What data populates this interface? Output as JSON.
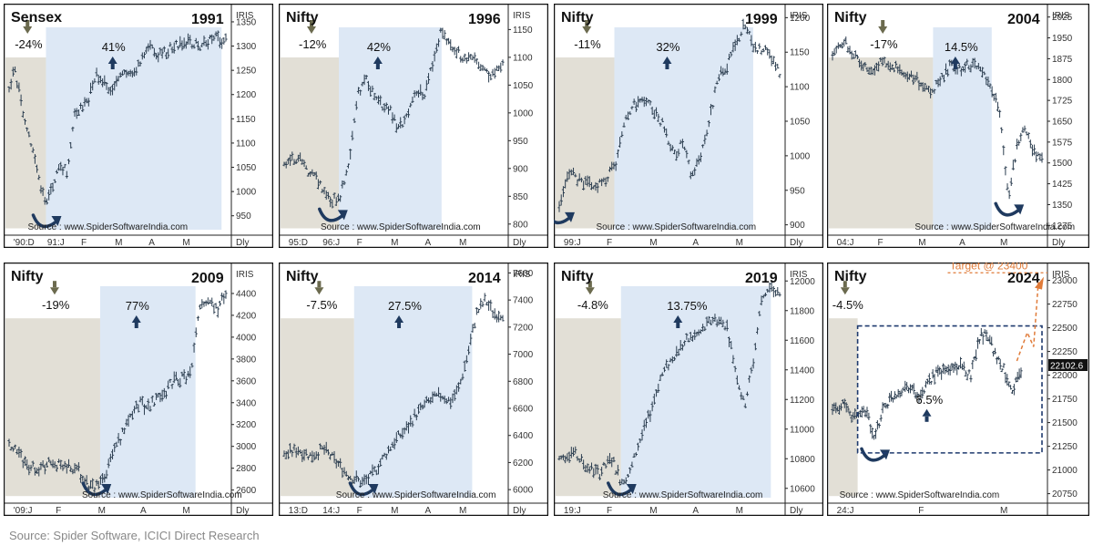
{
  "footer": "Source: Spider Software, ICICI Direct Research",
  "colors": {
    "pre_zone": "#e2dfd6",
    "rally_zone": "#dde8f5",
    "bars": "#2c3e50",
    "arrow_down": "#6b6a4e",
    "arrow_up": "#1f3a5f",
    "target": "#e07b39",
    "dashed_box": "#1f3a6e"
  },
  "chart_data": [
    {
      "type": "ohlc",
      "index": "Sensex",
      "year": "1991",
      "iris": "IRIS",
      "period": "Dly",
      "source_note": "Source : www.SpiderSoftwareIndia.com",
      "x_labels": [
        "'90:D",
        "91:J",
        "F",
        "M",
        "A",
        "M"
      ],
      "y_ticks": [
        950,
        1000,
        1050,
        1100,
        1150,
        1200,
        1250,
        1300,
        1350
      ],
      "ylim": [
        910,
        1380
      ],
      "decline_pct": "-24%",
      "rally_pct": "41%",
      "path": [
        [
          0,
          1210
        ],
        [
          0.025,
          1260
        ],
        [
          0.06,
          1170
        ],
        [
          0.1,
          1100
        ],
        [
          0.14,
          1020
        ],
        [
          0.17,
          965
        ],
        [
          0.2,
          1010
        ],
        [
          0.23,
          1060
        ],
        [
          0.27,
          1040
        ],
        [
          0.3,
          1160
        ],
        [
          0.36,
          1180
        ],
        [
          0.4,
          1240
        ],
        [
          0.46,
          1210
        ],
        [
          0.52,
          1240
        ],
        [
          0.58,
          1250
        ],
        [
          0.64,
          1300
        ],
        [
          0.7,
          1280
        ],
        [
          0.76,
          1300
        ],
        [
          0.82,
          1310
        ],
        [
          0.88,
          1300
        ],
        [
          0.94,
          1320
        ],
        [
          1,
          1310
        ]
      ]
    },
    {
      "type": "ohlc",
      "index": "Nifty",
      "year": "1996",
      "iris": "IRIS",
      "period": "Dly",
      "source_note": "Source : www.SpiderSoftwareIndia.com",
      "x_labels": [
        "95:D",
        "96:J",
        "F",
        "M",
        "A",
        "M"
      ],
      "y_ticks": [
        800,
        850,
        900,
        950,
        1000,
        1050,
        1100,
        1150
      ],
      "ylim": [
        780,
        1190
      ],
      "decline_pct": "-12%",
      "rally_pct": "42%",
      "path": [
        [
          0,
          910
        ],
        [
          0.06,
          920
        ],
        [
          0.1,
          900
        ],
        [
          0.16,
          875
        ],
        [
          0.22,
          840
        ],
        [
          0.26,
          855
        ],
        [
          0.3,
          920
        ],
        [
          0.34,
          1040
        ],
        [
          0.38,
          1060
        ],
        [
          0.42,
          1020
        ],
        [
          0.48,
          1010
        ],
        [
          0.52,
          970
        ],
        [
          0.56,
          990
        ],
        [
          0.6,
          1040
        ],
        [
          0.64,
          1030
        ],
        [
          0.68,
          1090
        ],
        [
          0.72,
          1150
        ],
        [
          0.76,
          1120
        ],
        [
          0.82,
          1100
        ],
        [
          0.88,
          1090
        ],
        [
          0.94,
          1070
        ],
        [
          1,
          1090
        ]
      ]
    },
    {
      "type": "ohlc",
      "index": "Nifty",
      "year": "1999",
      "iris": "IRIS",
      "period": "Dly",
      "source_note": "Source : www.SpiderSoftwareIndia.com",
      "x_labels": [
        "99:J",
        "F",
        "M",
        "A",
        "M"
      ],
      "y_ticks": [
        900,
        950,
        1000,
        1050,
        1100,
        1150,
        1200
      ],
      "ylim": [
        885,
        1215
      ],
      "decline_pct": "-11%",
      "rally_pct": "32%",
      "path": [
        [
          0,
          930
        ],
        [
          0.05,
          980
        ],
        [
          0.1,
          960
        ],
        [
          0.16,
          955
        ],
        [
          0.2,
          960
        ],
        [
          0.26,
          990
        ],
        [
          0.3,
          1060
        ],
        [
          0.36,
          1080
        ],
        [
          0.42,
          1070
        ],
        [
          0.48,
          1040
        ],
        [
          0.52,
          1000
        ],
        [
          0.56,
          1020
        ],
        [
          0.6,
          970
        ],
        [
          0.64,
          1000
        ],
        [
          0.68,
          1050
        ],
        [
          0.72,
          1110
        ],
        [
          0.76,
          1130
        ],
        [
          0.8,
          1160
        ],
        [
          0.84,
          1190
        ],
        [
          0.88,
          1160
        ],
        [
          0.94,
          1150
        ],
        [
          1,
          1120
        ]
      ]
    },
    {
      "type": "ohlc",
      "index": "Nifty",
      "year": "2004",
      "iris": "IRIS",
      "period": "Dly",
      "source_note": "Source : www.SpiderSoftwareIndia.com",
      "x_labels": [
        "04:J",
        "F",
        "M",
        "A",
        "M"
      ],
      "y_ticks": [
        1275,
        1350,
        1425,
        1500,
        1575,
        1650,
        1725,
        1800,
        1875,
        1950,
        2025
      ],
      "ylim": [
        1240,
        2060
      ],
      "decline_pct": "-17%",
      "rally_pct": "14.5%",
      "path": [
        [
          0,
          1900
        ],
        [
          0.06,
          1930
        ],
        [
          0.12,
          1880
        ],
        [
          0.18,
          1830
        ],
        [
          0.22,
          1860
        ],
        [
          0.28,
          1850
        ],
        [
          0.34,
          1830
        ],
        [
          0.4,
          1800
        ],
        [
          0.46,
          1750
        ],
        [
          0.52,
          1800
        ],
        [
          0.56,
          1850
        ],
        [
          0.62,
          1840
        ],
        [
          0.68,
          1860
        ],
        [
          0.72,
          1820
        ],
        [
          0.76,
          1760
        ],
        [
          0.8,
          1680
        ],
        [
          0.84,
          1380
        ],
        [
          0.88,
          1560
        ],
        [
          0.92,
          1620
        ],
        [
          0.96,
          1540
        ],
        [
          1,
          1510
        ]
      ]
    },
    {
      "type": "ohlc",
      "index": "Nifty",
      "year": "2009",
      "iris": "IRIS",
      "period": "Dly",
      "source_note": "Source : www.SpiderSoftwareIndia.com",
      "x_labels": [
        "'09:J",
        "F",
        "M",
        "A",
        "M"
      ],
      "y_ticks": [
        2600,
        2800,
        3000,
        3200,
        3400,
        3600,
        3800,
        4000,
        4200,
        4400,
        4600
      ],
      "ylim": [
        2480,
        4650
      ],
      "decline_pct": "-19%",
      "rally_pct": "77%",
      "path": [
        [
          0,
          3000
        ],
        [
          0.04,
          2950
        ],
        [
          0.08,
          2820
        ],
        [
          0.14,
          2800
        ],
        [
          0.2,
          2850
        ],
        [
          0.26,
          2820
        ],
        [
          0.32,
          2780
        ],
        [
          0.36,
          2650
        ],
        [
          0.4,
          2620
        ],
        [
          0.44,
          2700
        ],
        [
          0.48,
          2950
        ],
        [
          0.52,
          3100
        ],
        [
          0.56,
          3300
        ],
        [
          0.6,
          3400
        ],
        [
          0.64,
          3350
        ],
        [
          0.68,
          3450
        ],
        [
          0.72,
          3500
        ],
        [
          0.76,
          3600
        ],
        [
          0.8,
          3620
        ],
        [
          0.84,
          3650
        ],
        [
          0.88,
          4300
        ],
        [
          0.92,
          4350
        ],
        [
          0.96,
          4250
        ],
        [
          1,
          4400
        ]
      ]
    },
    {
      "type": "ohlc",
      "index": "Nifty",
      "year": "2014",
      "iris": "IRIS",
      "period": "Dly",
      "source_note": "Source : www.SpiderSoftwareIndia.com",
      "x_labels": [
        "13:D",
        "14:J",
        "F",
        "M",
        "A",
        "M"
      ],
      "y_ticks": [
        6000,
        6200,
        6400,
        6600,
        6800,
        7000,
        7200,
        7400,
        7600
      ],
      "ylim": [
        5900,
        7650
      ],
      "decline_pct": "-7.5%",
      "rally_pct": "27.5%",
      "path": [
        [
          0,
          6250
        ],
        [
          0.06,
          6300
        ],
        [
          0.12,
          6250
        ],
        [
          0.18,
          6300
        ],
        [
          0.24,
          6200
        ],
        [
          0.3,
          6100
        ],
        [
          0.36,
          6050
        ],
        [
          0.4,
          6100
        ],
        [
          0.44,
          6200
        ],
        [
          0.5,
          6350
        ],
        [
          0.56,
          6450
        ],
        [
          0.6,
          6550
        ],
        [
          0.66,
          6650
        ],
        [
          0.72,
          6700
        ],
        [
          0.76,
          6650
        ],
        [
          0.8,
          6750
        ],
        [
          0.84,
          7000
        ],
        [
          0.88,
          7300
        ],
        [
          0.92,
          7400
        ],
        [
          0.96,
          7300
        ],
        [
          1,
          7300
        ]
      ]
    },
    {
      "type": "ohlc",
      "index": "Nifty",
      "year": "2019",
      "iris": "IRIS",
      "period": "Dly",
      "source_note": "Source : www.SpiderSoftwareIndia.com",
      "x_labels": [
        "19:J",
        "F",
        "M",
        "A",
        "M"
      ],
      "y_ticks": [
        10600,
        10800,
        11000,
        11200,
        11400,
        11600,
        11800,
        12000
      ],
      "ylim": [
        10500,
        12100
      ],
      "decline_pct": "-4.8%",
      "rally_pct": "13.75%",
      "path": [
        [
          0,
          10800
        ],
        [
          0.06,
          10850
        ],
        [
          0.12,
          10750
        ],
        [
          0.18,
          10700
        ],
        [
          0.24,
          10800
        ],
        [
          0.28,
          10650
        ],
        [
          0.32,
          10700
        ],
        [
          0.36,
          10900
        ],
        [
          0.4,
          11050
        ],
        [
          0.46,
          11350
        ],
        [
          0.52,
          11500
        ],
        [
          0.58,
          11600
        ],
        [
          0.64,
          11650
        ],
        [
          0.7,
          11750
        ],
        [
          0.76,
          11700
        ],
        [
          0.8,
          11400
        ],
        [
          0.84,
          11150
        ],
        [
          0.88,
          11450
        ],
        [
          0.92,
          11900
        ],
        [
          0.96,
          11950
        ],
        [
          1,
          11900
        ]
      ]
    },
    {
      "type": "ohlc",
      "index": "Nifty",
      "year": "2024",
      "iris": "IRIS",
      "period": "",
      "source_note": "Source : www.SpiderSoftwareIndia.com",
      "x_labels": [
        "24:J",
        "F",
        "M"
      ],
      "y_ticks": [
        20750,
        21000,
        21250,
        21500,
        21750,
        22000,
        22250,
        22500,
        22750,
        23000
      ],
      "ylim": [
        20650,
        23150
      ],
      "decline_pct": "-4.5%",
      "rally_pct": "6.5%",
      "last_price": "22102.6",
      "target_label": "Target @ 23400",
      "path": [
        [
          0,
          21650
        ],
        [
          0.05,
          21700
        ],
        [
          0.1,
          21550
        ],
        [
          0.16,
          21650
        ],
        [
          0.2,
          21300
        ],
        [
          0.24,
          21650
        ],
        [
          0.3,
          21800
        ],
        [
          0.36,
          21900
        ],
        [
          0.42,
          21750
        ],
        [
          0.48,
          22000
        ],
        [
          0.54,
          22050
        ],
        [
          0.6,
          22100
        ],
        [
          0.66,
          22000
        ],
        [
          0.7,
          22400
        ],
        [
          0.74,
          22450
        ],
        [
          0.78,
          22200
        ],
        [
          0.82,
          22050
        ],
        [
          0.86,
          21850
        ],
        [
          0.9,
          22050
        ]
      ]
    }
  ]
}
